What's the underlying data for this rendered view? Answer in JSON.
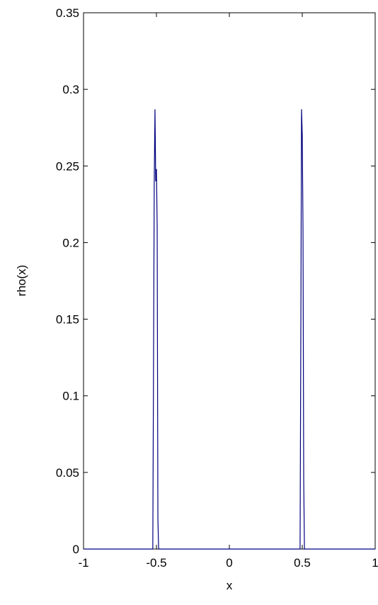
{
  "chart_data": {
    "type": "line",
    "x_label": "x",
    "y_label": "rho(x)",
    "x": [
      -1,
      -0.525,
      -0.52,
      -0.515,
      -0.51,
      -0.505,
      -0.5,
      -0.495,
      -0.49,
      -0.485,
      -0.48,
      0.48,
      0.485,
      0.49,
      0.495,
      0.5,
      0.505,
      0.51,
      0.515,
      0.52,
      1
    ],
    "series": [
      {
        "color": "#00007f",
        "values": [
          0,
          0,
          0.12,
          0.24,
          0.287,
          0.24,
          0.248,
          0.21,
          0.02,
          0,
          0,
          0,
          0,
          0.135,
          0.287,
          0.27,
          0.21,
          0.045,
          0,
          0,
          0
        ]
      }
    ],
    "xlim": [
      -1,
      1
    ],
    "xticks": [
      -1,
      -0.5,
      0,
      0.5,
      1
    ],
    "ylim": [
      0,
      0.35
    ],
    "yticks": [
      0,
      0.05,
      0.1,
      0.15,
      0.2,
      0.25,
      0.3,
      0.35
    ],
    "grid": false
  }
}
